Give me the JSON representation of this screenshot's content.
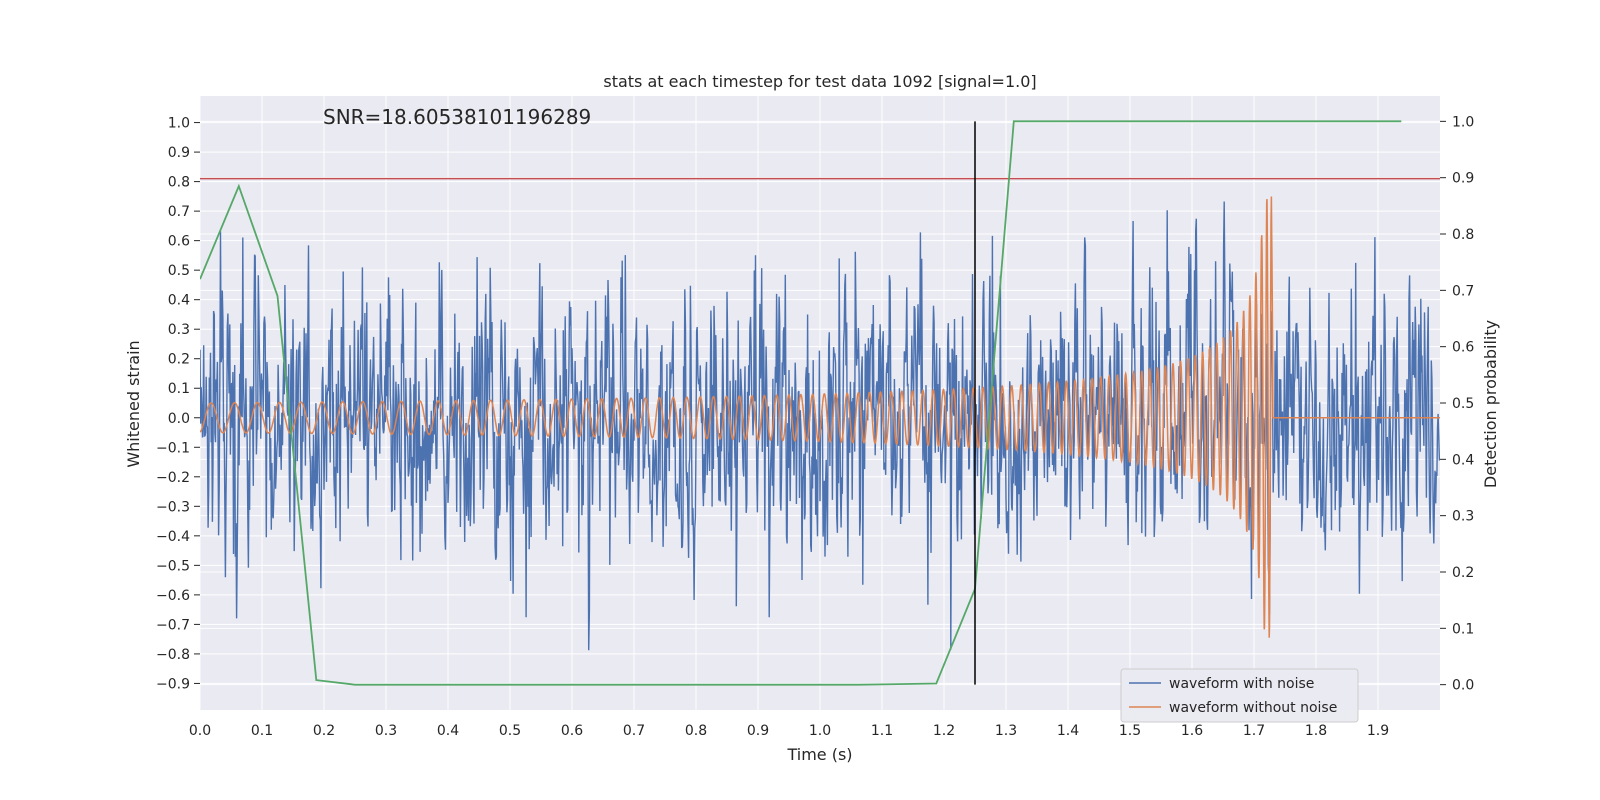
{
  "chart_data": {
    "type": "line",
    "title": "stats at each timestep for test data 1092 [signal=1.0]",
    "annotation": "SNR=18.60538101196289",
    "xlabel": "Time (s)",
    "ylabel": "Whitened strain",
    "y2label": "Detection probability",
    "xlim": [
      0.0,
      2.0
    ],
    "ylim": [
      -0.99,
      1.09
    ],
    "y2lim": [
      -0.045,
      1.045
    ],
    "x_ticks": [
      "0.0",
      "0.1",
      "0.2",
      "0.3",
      "0.4",
      "0.5",
      "0.6",
      "0.7",
      "0.8",
      "0.9",
      "1.0",
      "1.1",
      "1.2",
      "1.3",
      "1.4",
      "1.5",
      "1.6",
      "1.7",
      "1.8",
      "1.9"
    ],
    "y_ticks": [
      "1.0",
      "0.9",
      "0.8",
      "0.7",
      "0.6",
      "0.5",
      "0.4",
      "0.3",
      "0.2",
      "0.1",
      "0.0",
      "−0.1",
      "−0.2",
      "−0.3",
      "−0.4",
      "−0.5",
      "−0.6",
      "−0.7",
      "−0.8",
      "−0.9"
    ],
    "y2_ticks": [
      "1.0",
      "0.9",
      "0.8",
      "0.7",
      "0.6",
      "0.5",
      "0.4",
      "0.3",
      "0.2",
      "0.1",
      "0.0"
    ],
    "grid": true,
    "legend_position": "bottom-right",
    "colors": {
      "noise": "#4c72b0",
      "clean": "#dd8452",
      "probability": "#55a868",
      "threshold": "#c44e52",
      "marker": "#000000",
      "background": "#eaeaf2",
      "grid": "#ffffff"
    },
    "threshold_y": 0.81,
    "marker_x": 1.25,
    "series": [
      {
        "name": "waveform with noise",
        "note": "dense noisy strain, roughly within [-0.85, 1.0]"
      },
      {
        "name": "waveform without noise",
        "note": "chirp signal, amplitude grows toward merger near 1.73 s then zero"
      },
      {
        "name": "detection probability",
        "axis": "right",
        "x": [
          0.0,
          0.0625,
          0.125,
          0.1875,
          0.25,
          0.3125,
          0.375,
          0.4375,
          0.5,
          0.5625,
          0.625,
          0.6875,
          0.75,
          0.8125,
          0.875,
          0.9375,
          1.0,
          1.0625,
          1.125,
          1.1875,
          1.25,
          1.3125,
          1.375,
          1.4375,
          1.5,
          1.5625,
          1.625,
          1.6875,
          1.75,
          1.8125,
          1.875,
          1.9375
        ],
        "values": [
          0.72,
          0.885,
          0.69,
          0.008,
          0.0,
          0.0,
          0.0,
          0.0,
          0.0,
          0.0,
          0.0,
          0.0,
          0.0,
          0.0,
          0.0,
          0.0,
          0.0,
          0.0,
          0.001,
          0.002,
          0.17,
          1.0,
          1.0,
          1.0,
          1.0,
          1.0,
          1.0,
          1.0,
          1.0,
          1.0,
          1.0,
          1.0
        ]
      }
    ],
    "legend": [
      "waveform with noise",
      "waveform without noise"
    ]
  }
}
